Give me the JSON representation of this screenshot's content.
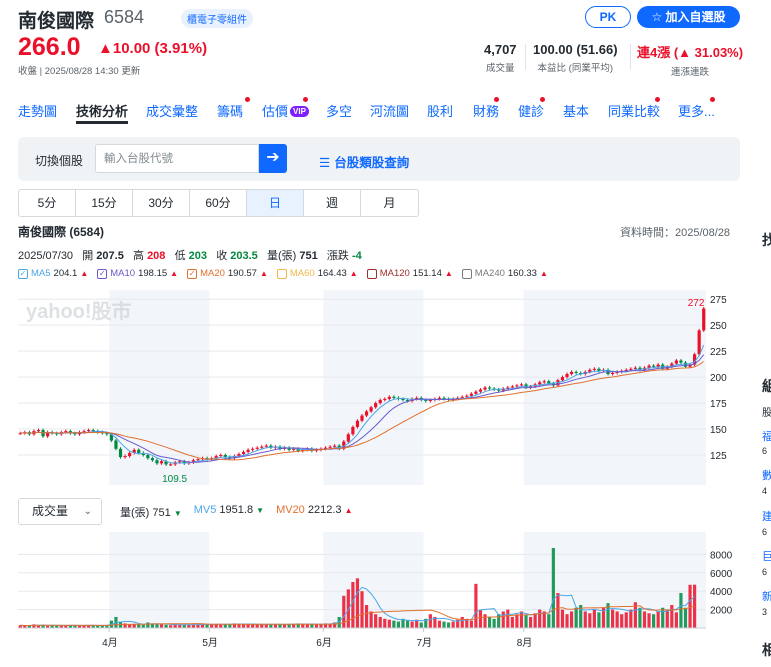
{
  "stock": {
    "name": "南俊國際",
    "code": "6584",
    "industry_tag": "櫃電子零組件",
    "price": "266.0",
    "change": "▲10.00 (3.91%)",
    "updated": "收盤 | 2025/08/28 14:30 更新",
    "pk_label": "PK",
    "add_watch_label": "☆  加入自選股",
    "stats": [
      {
        "value": "4,707",
        "label": "成交量"
      },
      {
        "value": "100.00 (51.66)",
        "label": "本益比 (同業平均)"
      },
      {
        "value": "連4漲 (▲ 31.03%)",
        "label": "連漲連跌"
      }
    ]
  },
  "tabs": [
    "走勢圖",
    "技術分析",
    "成交彙整",
    "籌碼",
    "估價",
    "多空",
    "河流圖",
    "股利",
    "財務",
    "健診",
    "基本",
    "同業比較",
    "更多..."
  ],
  "vip_label": "VIP",
  "search": {
    "label": "切換個股",
    "placeholder": "輸入台股代號",
    "go_icon": "arrow-right-icon",
    "classify_label": "台股類股查詢"
  },
  "periods": [
    "5分",
    "15分",
    "30分",
    "60分",
    "日",
    "週",
    "月"
  ],
  "chart_header": {
    "title": "南俊國際 (6584)",
    "data_time": "資料時間：2025/08/28",
    "date": "2025/07/30",
    "open_label": "開",
    "open": "207.5",
    "high_label": "高",
    "high": "208",
    "low_label": "低",
    "low": "203",
    "close_label": "收",
    "close": "203.5",
    "vol_label": "量(張)",
    "vol": "751",
    "chg_label": "漲跌",
    "chg": "-4"
  },
  "ma_legend": [
    {
      "name": "MA5",
      "value": "204.1",
      "color": "#4aa5e8",
      "trend": "up",
      "checked": true
    },
    {
      "name": "MA10",
      "value": "198.15",
      "color": "#6a5acd",
      "trend": "up",
      "checked": true
    },
    {
      "name": "MA20",
      "value": "190.57",
      "color": "#e0702e",
      "trend": "up",
      "checked": true
    },
    {
      "name": "MA60",
      "value": "164.43",
      "color": "#f2b84b",
      "trend": "up",
      "checked": false
    },
    {
      "name": "MA120",
      "value": "151.14",
      "color": "#a0302e",
      "trend": "up",
      "checked": false
    },
    {
      "name": "MA240",
      "value": "160.33",
      "color": "#7a7a7a",
      "trend": "up",
      "checked": false
    }
  ],
  "watermark": "yahoo!股市",
  "volume_header": {
    "select_label": "成交量",
    "vol_label": "量(張)",
    "vol": "751",
    "mv5_label": "MV5",
    "mv5": "1951.8",
    "mv20_label": "MV20",
    "mv20": "2212.3"
  },
  "chart_data": {
    "type": "candlestick",
    "title": "南俊國際 (6584)",
    "ylim": [
      100,
      280
    ],
    "yticks": [
      125,
      150,
      175,
      200,
      225,
      250,
      275
    ],
    "max_label": "272",
    "min_label": "109.5",
    "months": [
      "4月",
      "5月",
      "6月",
      "7月",
      "8月"
    ],
    "close": [
      146,
      147,
      145,
      148,
      149,
      143,
      147,
      146,
      145,
      147,
      148,
      146,
      145,
      147,
      148,
      149,
      148,
      147,
      146,
      145,
      139,
      131,
      123,
      124,
      127,
      130,
      127,
      125,
      122,
      120,
      117,
      119,
      116,
      116,
      118,
      119,
      117,
      118,
      120,
      121,
      122,
      121,
      122,
      124,
      125,
      123,
      122,
      124,
      126,
      128,
      130,
      131,
      132,
      133,
      134,
      132,
      133,
      131,
      132,
      130,
      131,
      129,
      130,
      131,
      129,
      130,
      131,
      132,
      133,
      134,
      131,
      138,
      145,
      152,
      158,
      163,
      167,
      171,
      175,
      178,
      179,
      181,
      180,
      179,
      178,
      177,
      179,
      180,
      178,
      177,
      178,
      179,
      180,
      179,
      178,
      179,
      180,
      181,
      182,
      184,
      186,
      188,
      190,
      189,
      188,
      187,
      189,
      190,
      191,
      192,
      193,
      190,
      191,
      193,
      195,
      196,
      194,
      192,
      197,
      200,
      203,
      205,
      204,
      203,
      205,
      207,
      208,
      206,
      207,
      203,
      204,
      205,
      206,
      207,
      208,
      209,
      207,
      209,
      211,
      210,
      212,
      208,
      210,
      213,
      216,
      214,
      210,
      212,
      222,
      245,
      266
    ],
    "vol_ylim": [
      0,
      10000
    ],
    "vol_yticks": [
      2000,
      4000,
      6000,
      8000
    ],
    "volume": [
      300,
      250,
      280,
      400,
      260,
      350,
      220,
      300,
      280,
      250,
      300,
      310,
      270,
      260,
      280,
      300,
      290,
      270,
      260,
      320,
      800,
      1200,
      700,
      500,
      400,
      450,
      380,
      350,
      600,
      500,
      420,
      380,
      350,
      300,
      400,
      380,
      360,
      350,
      380,
      400,
      420,
      380,
      400,
      450,
      420,
      380,
      400,
      500,
      450,
      420,
      380,
      400,
      420,
      380,
      400,
      420,
      380,
      400,
      380,
      420,
      450,
      500,
      420,
      400,
      380,
      400,
      450,
      500,
      480,
      600,
      1200,
      3500,
      4200,
      5000,
      5400,
      4000,
      2500,
      1800,
      1500,
      1200,
      1000,
      900,
      800,
      700,
      1000,
      800,
      700,
      900,
      600,
      1000,
      1500,
      1200,
      800,
      700,
      600,
      700,
      900,
      1200,
      1000,
      800,
      4800,
      2000,
      1500,
      1200,
      1000,
      1500,
      1800,
      2000,
      1200,
      1500,
      1800,
      1400,
      1200,
      1600,
      2000,
      1800,
      1500,
      8700,
      3800,
      2000,
      1500,
      1800,
      2200,
      2500,
      1800,
      1600,
      2000,
      1700,
      2200,
      2700,
      2000,
      1800,
      1500,
      1700,
      2000,
      2800,
      2200,
      1800,
      1600,
      1500,
      1800,
      2200,
      2000,
      2500,
      1700,
      3800,
      2200,
      4700,
      4707
    ]
  },
  "side_fragments": [
    "找",
    "組",
    "股",
    "福",
    "6",
    "數",
    "4",
    "建",
    "6",
    "巨",
    "6",
    "新",
    "3",
    "相"
  ]
}
